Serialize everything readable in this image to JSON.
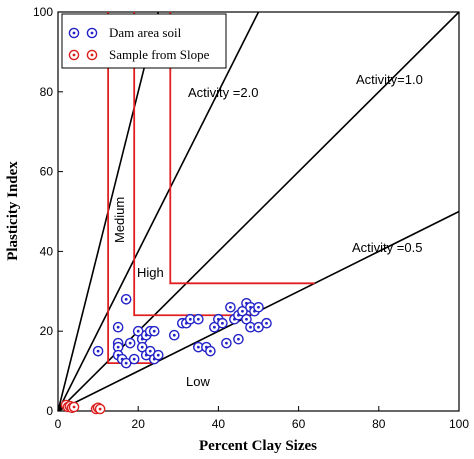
{
  "chart_data": {
    "type": "scatter",
    "xlabel": "Percent Clay Sizes",
    "ylabel": "Plasticity Index",
    "xlim": [
      0,
      100
    ],
    "ylim": [
      0,
      100
    ],
    "xticks": [
      "0",
      "20",
      "40",
      "60",
      "80",
      "100"
    ],
    "yticks": [
      "0",
      "20",
      "40",
      "60",
      "80",
      "100"
    ],
    "legend_position": "top-left",
    "series": [
      {
        "name": "Dam area soil",
        "color": "#2323c8",
        "marker": "circle-dot",
        "points": [
          [
            10,
            15
          ],
          [
            15,
            21
          ],
          [
            15,
            17
          ],
          [
            15,
            16
          ],
          [
            15,
            14
          ],
          [
            16,
            13
          ],
          [
            17,
            28
          ],
          [
            17,
            12
          ],
          [
            18,
            17
          ],
          [
            19,
            13
          ],
          [
            20,
            20
          ],
          [
            21,
            18
          ],
          [
            21,
            16
          ],
          [
            22,
            19
          ],
          [
            22,
            14
          ],
          [
            23,
            20
          ],
          [
            23,
            15
          ],
          [
            24,
            20
          ],
          [
            24,
            13
          ],
          [
            25,
            14
          ],
          [
            29,
            19
          ],
          [
            31,
            22
          ],
          [
            32,
            22
          ],
          [
            33,
            23
          ],
          [
            35,
            23
          ],
          [
            35,
            16
          ],
          [
            37,
            16
          ],
          [
            38,
            15
          ],
          [
            39,
            21
          ],
          [
            40,
            23
          ],
          [
            41,
            22
          ],
          [
            42,
            17
          ],
          [
            43,
            26
          ],
          [
            44,
            23
          ],
          [
            45,
            18
          ],
          [
            45,
            24
          ],
          [
            46,
            25
          ],
          [
            47,
            27
          ],
          [
            47,
            23
          ],
          [
            48,
            26
          ],
          [
            48,
            21
          ],
          [
            49,
            25
          ],
          [
            50,
            26
          ],
          [
            50,
            21
          ],
          [
            52,
            22
          ]
        ]
      },
      {
        "name": "Sample from Slope",
        "color": "#dc2020",
        "marker": "circle-dot",
        "points": [
          [
            2,
            1.5
          ],
          [
            2.5,
            1
          ],
          [
            3,
            1.2
          ],
          [
            3.5,
            0.8
          ],
          [
            4,
            1
          ],
          [
            9.5,
            0.5
          ],
          [
            10,
            0.8
          ],
          [
            10.5,
            0.5
          ]
        ]
      }
    ],
    "activity_lines": [
      {
        "label": "Activity =2.0",
        "slope": 2.0
      },
      {
        "label": "Activity=1.0",
        "slope": 1.0
      },
      {
        "label": "Activity =0.5",
        "slope": 0.5
      },
      {
        "slope": 4.0
      }
    ],
    "region_labels": {
      "low": "Low",
      "medium": "Medium",
      "high": "High"
    },
    "boundaries": [
      [
        [
          12.5,
          100
        ],
        [
          12.5,
          12
        ],
        [
          24,
          12
        ]
      ],
      [
        [
          19,
          100
        ],
        [
          19,
          24
        ],
        [
          48,
          24
        ]
      ],
      [
        [
          28,
          100
        ],
        [
          28,
          32
        ],
        [
          64,
          32
        ]
      ]
    ]
  }
}
